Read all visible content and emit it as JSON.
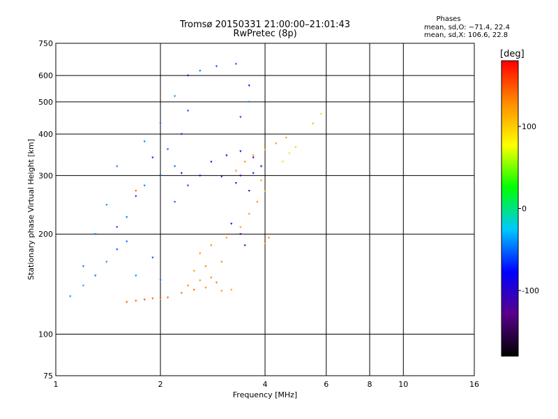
{
  "title": "Tromsø 20150331 21:00:00–21:01:43",
  "subtitle": "RwPretec (8p)",
  "stats": {
    "heading": "Phases",
    "o_line": "mean, sd,O: −71.4, 22.4",
    "x_line": "mean, sd,X: 106.6, 22.8"
  },
  "chart_data": {
    "type": "scatter",
    "title": "Tromsø 20150331 21:00:00–21:01:43",
    "subtitle": "RwPretec (8p)",
    "xlabel": "Frequency [MHz]",
    "ylabel": "Stationary phase Virtual Height [km]",
    "x_scale": "log",
    "y_scale": "log",
    "xlim": [
      1,
      16
    ],
    "ylim": [
      75,
      750
    ],
    "x_ticks": [
      1,
      2,
      4,
      6,
      8,
      10,
      16
    ],
    "y_ticks": [
      75,
      100,
      200,
      300,
      400,
      500,
      600,
      750
    ],
    "x_gridlines": [
      2,
      4,
      6,
      8,
      10
    ],
    "y_gridlines": [
      100,
      200,
      300,
      400,
      500,
      600
    ],
    "grid": true,
    "colorbar": {
      "label": "[deg]",
      "range": [
        -180,
        180
      ],
      "ticks": [
        100,
        0,
        -100
      ],
      "colors": [
        "#000000",
        "#5a008c",
        "#0000ff",
        "#00c8ff",
        "#00ff00",
        "#ffff00",
        "#ff8c00",
        "#ff0000"
      ]
    },
    "series": [
      {
        "points": [
          [
            1.6,
            125,
            150
          ],
          [
            1.7,
            126,
            148
          ],
          [
            1.8,
            127,
            152
          ],
          [
            1.9,
            128,
            146
          ],
          [
            2.0,
            128,
            150
          ],
          [
            2.1,
            129,
            147
          ],
          [
            2.3,
            133,
            140
          ],
          [
            2.5,
            136,
            142
          ],
          [
            2.7,
            138,
            130
          ],
          [
            3.0,
            135,
            125
          ],
          [
            3.2,
            136,
            120
          ],
          [
            2.4,
            140,
            135
          ],
          [
            2.6,
            145,
            128
          ],
          [
            2.8,
            148,
            132
          ],
          [
            2.9,
            143,
            138
          ],
          [
            2.5,
            155,
            125
          ],
          [
            2.7,
            160,
            135
          ],
          [
            3.0,
            165,
            130
          ],
          [
            2.6,
            175,
            128
          ],
          [
            2.8,
            185,
            132
          ],
          [
            3.1,
            195,
            125
          ],
          [
            3.4,
            210,
            120
          ],
          [
            3.6,
            230,
            125
          ],
          [
            3.8,
            250,
            130
          ],
          [
            4.0,
            270,
            128
          ],
          [
            3.9,
            290,
            120
          ],
          [
            3.3,
            310,
            125
          ],
          [
            3.5,
            330,
            130
          ],
          [
            3.7,
            345,
            128
          ],
          [
            4.0,
            360,
            125
          ],
          [
            4.3,
            375,
            128
          ],
          [
            4.6,
            390,
            120
          ],
          [
            4.5,
            330,
            95
          ],
          [
            4.7,
            350,
            90
          ],
          [
            4.9,
            365,
            100
          ],
          [
            5.5,
            430,
            110
          ],
          [
            5.8,
            460,
            95
          ],
          [
            4.0,
            188,
            135
          ],
          [
            4.1,
            195,
            130
          ],
          [
            1.7,
            270,
            145
          ]
        ]
      },
      {
        "points": [
          [
            1.1,
            130,
            -40
          ],
          [
            1.2,
            140,
            -35
          ],
          [
            1.3,
            150,
            -50
          ],
          [
            1.4,
            165,
            -40
          ],
          [
            1.5,
            180,
            -55
          ],
          [
            1.3,
            200,
            -45
          ],
          [
            1.5,
            210,
            -60
          ],
          [
            1.6,
            225,
            -50
          ],
          [
            1.4,
            245,
            -40
          ],
          [
            1.7,
            260,
            -65
          ],
          [
            1.8,
            280,
            -45
          ],
          [
            2.0,
            300,
            -60
          ],
          [
            2.2,
            320,
            -50
          ],
          [
            1.9,
            340,
            -70
          ],
          [
            2.1,
            360,
            -55
          ],
          [
            1.8,
            380,
            -45
          ],
          [
            2.3,
            400,
            -65
          ],
          [
            2.0,
            430,
            -50
          ],
          [
            2.4,
            470,
            -60
          ],
          [
            2.2,
            520,
            -40
          ],
          [
            2.4,
            600,
            -70
          ],
          [
            2.6,
            620,
            -50
          ],
          [
            2.9,
            640,
            -60
          ],
          [
            3.3,
            650,
            -55
          ],
          [
            3.6,
            560,
            -75
          ],
          [
            1.2,
            160,
            -48
          ],
          [
            1.6,
            190,
            -52
          ],
          [
            1.9,
            170,
            -58
          ],
          [
            1.7,
            150,
            -44
          ],
          [
            2.0,
            145,
            -50
          ],
          [
            2.3,
            305,
            -95
          ],
          [
            2.6,
            300,
            -105
          ],
          [
            3.0,
            298,
            -110
          ],
          [
            3.4,
            300,
            -100
          ],
          [
            3.7,
            305,
            -95
          ],
          [
            3.3,
            285,
            -110
          ],
          [
            3.6,
            270,
            -120
          ],
          [
            3.2,
            215,
            -105
          ],
          [
            3.4,
            200,
            -110
          ],
          [
            3.5,
            185,
            -115
          ],
          [
            2.8,
            330,
            -90
          ],
          [
            3.1,
            345,
            -85
          ],
          [
            3.4,
            355,
            -95
          ],
          [
            3.7,
            340,
            -100
          ],
          [
            3.9,
            320,
            -90
          ],
          [
            3.4,
            450,
            -60
          ],
          [
            3.6,
            500,
            -40
          ],
          [
            2.2,
            250,
            -55
          ],
          [
            2.4,
            280,
            -62
          ],
          [
            1.5,
            320,
            -45
          ]
        ]
      }
    ],
    "points_note_format": "[frequency_MHz, virtual_height_km, phase_deg]"
  }
}
